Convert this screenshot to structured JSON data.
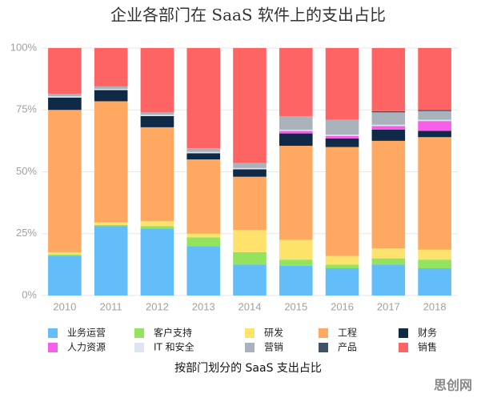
{
  "chart_data": {
    "type": "stacked_bar",
    "title": "企业各部门在 SaaS 软件上的支出占比",
    "x_label": "按部门划分的 SaaS 支出占比",
    "watermark": "思创网",
    "categories": [
      "2010",
      "2011",
      "2012",
      "2013",
      "2014",
      "2015",
      "2016",
      "2017",
      "2018"
    ],
    "series": [
      {
        "name": "业务运营",
        "color": "#62bdf9",
        "values": [
          16,
          28,
          27,
          20,
          12.5,
          12,
          11,
          12.5,
          11
        ]
      },
      {
        "name": "客户支持",
        "color": "#94e35e",
        "values": [
          0.5,
          0.5,
          1,
          3.5,
          5,
          2.5,
          1.5,
          2.5,
          3.5
        ]
      },
      {
        "name": "研发",
        "color": "#ffe26b",
        "values": [
          1,
          1,
          2,
          1.5,
          9,
          8,
          3.5,
          4,
          4
        ]
      },
      {
        "name": "工程",
        "color": "#ffa862",
        "values": [
          57.5,
          49,
          38,
          30,
          21.5,
          38,
          44,
          43.5,
          45.5
        ]
      },
      {
        "name": "财务",
        "color": "#0f2a46",
        "values": [
          5,
          4.5,
          4.5,
          2.5,
          3,
          5,
          3.5,
          4.5,
          2.5
        ]
      },
      {
        "name": "人力资源",
        "color": "#f65ee9",
        "values": [
          0,
          0,
          0,
          0,
          0,
          1,
          1,
          1.5,
          4
        ]
      },
      {
        "name": "IT 和安全",
        "color": "#dfe5ef",
        "values": [
          0.5,
          0.5,
          0.5,
          0.5,
          0.5,
          0.5,
          0.5,
          0.5,
          0.5
        ]
      },
      {
        "name": "营销",
        "color": "#aab3bc",
        "values": [
          1,
          1,
          1,
          1.5,
          2,
          5.5,
          6,
          5,
          3.5
        ]
      },
      {
        "name": "产品",
        "color": "#3e5466",
        "values": [
          0,
          0,
          0,
          0,
          0,
          0,
          0,
          0.5,
          0.5
        ]
      },
      {
        "name": "销售",
        "color": "#ff6464",
        "values": [
          18.5,
          15.5,
          26,
          40.5,
          46.5,
          27.5,
          29,
          25.5,
          25
        ]
      }
    ],
    "ylim": [
      0,
      100
    ],
    "yticks": [
      {
        "value": 0,
        "label": "0%"
      },
      {
        "value": 25,
        "label": "25%"
      },
      {
        "value": 50,
        "label": "50%"
      },
      {
        "value": 75,
        "label": "75%"
      },
      {
        "value": 100,
        "label": "100%"
      }
    ],
    "grid": true
  }
}
